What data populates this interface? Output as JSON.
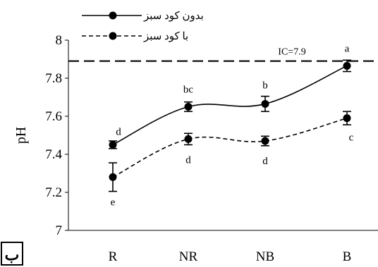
{
  "chart_data": {
    "type": "line",
    "categories": [
      "R",
      "NR",
      "NB",
      "B"
    ],
    "ylabel": "pH",
    "xlabel": "",
    "ylim": [
      7,
      8
    ],
    "yticks": [
      7,
      7.2,
      7.4,
      7.6,
      7.8,
      8
    ],
    "ytick_labels": [
      "7",
      "7.2",
      "7.4",
      "7.6",
      "7.8",
      "8"
    ],
    "series": [
      {
        "name": "بدون کود سبز",
        "line_style": "solid",
        "values": [
          7.45,
          7.65,
          7.665,
          7.865
        ],
        "errors": [
          0.02,
          0.025,
          0.04,
          0.03
        ],
        "labels": [
          "d",
          "bc",
          "b",
          "a"
        ]
      },
      {
        "name": "با کود سبز",
        "line_style": "dashed",
        "values": [
          7.28,
          7.48,
          7.47,
          7.59
        ],
        "errors": [
          0.075,
          0.03,
          0.025,
          0.035
        ],
        "labels": [
          "e",
          "d",
          "d",
          "c"
        ]
      }
    ],
    "reference_line": {
      "value": 7.89,
      "label": "IC=7.9"
    },
    "legend_position": "top-left",
    "panel_label": "ب",
    "grid": false
  }
}
